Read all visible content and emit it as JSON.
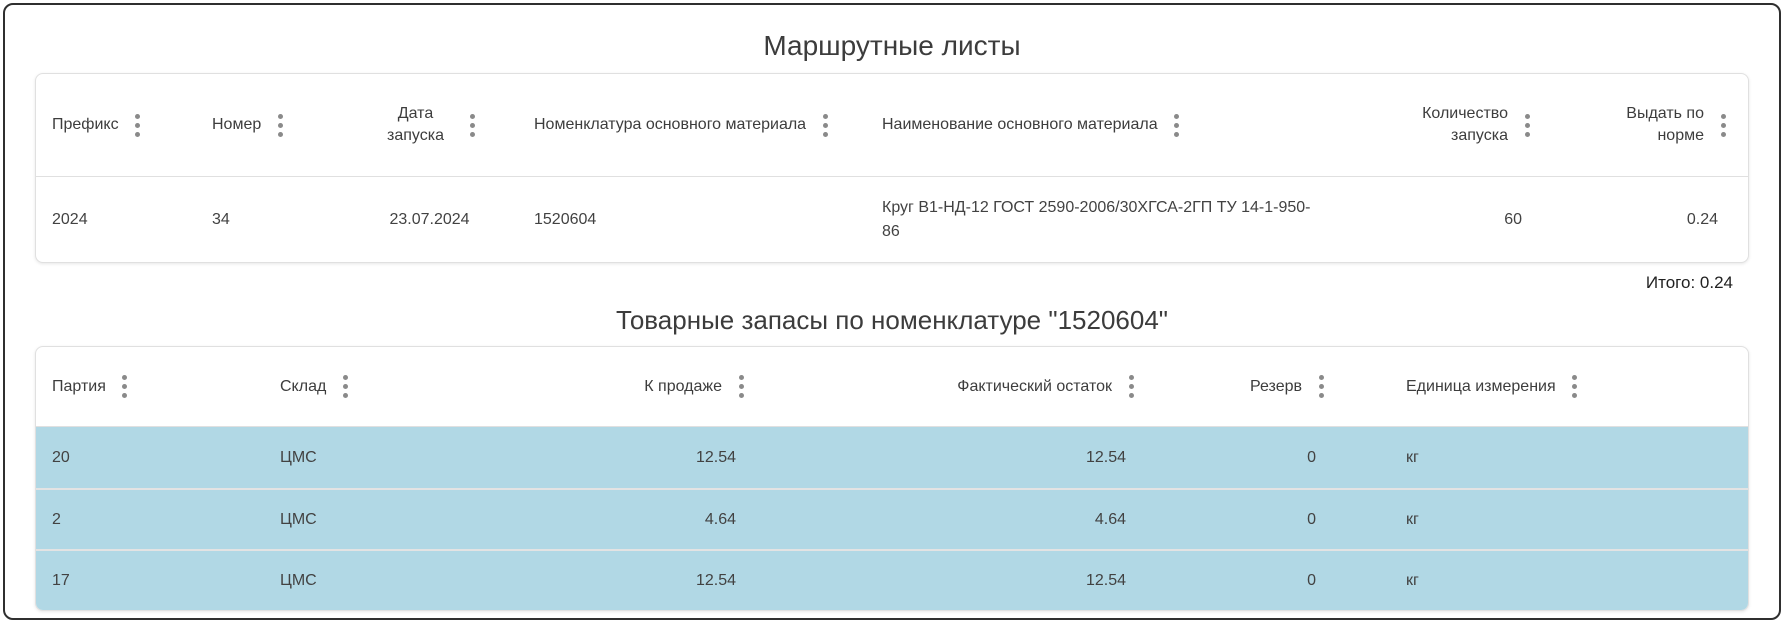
{
  "colors": {
    "row_highlight": "#b1d8e5",
    "card_border": "#e0e0e0",
    "frame_border": "#2f2f2f",
    "kebab_gray": "#8a8a8a"
  },
  "icons": {
    "column_menu": "kebab-vertical-icon"
  },
  "route_sheets": {
    "title": "Маршрутные листы",
    "columns": [
      {
        "label": "Префикс",
        "align": "left"
      },
      {
        "label": "Номер",
        "align": "left"
      },
      {
        "label": "Дата запуска",
        "align": "center"
      },
      {
        "label": "Номенклатура основного материала",
        "align": "left"
      },
      {
        "label": "Наименование основного материала",
        "align": "left"
      },
      {
        "label": "Количество запуска",
        "align": "right"
      },
      {
        "label": "Выдать по норме",
        "align": "right"
      }
    ],
    "rows": [
      [
        "2024",
        "34",
        "23.07.2024",
        "1520604",
        "Круг В1-НД-12 ГОСТ 2590-2006/30ХГСА-2ГП ТУ 14-1-950-86",
        "60",
        "0.24"
      ]
    ],
    "total_label": "Итого: 0.24"
  },
  "stocks": {
    "title": "Товарные запасы по номенклатуре \"1520604\"",
    "columns": [
      {
        "label": "Партия",
        "align": "left"
      },
      {
        "label": "Склад",
        "align": "left"
      },
      {
        "label": "К продаже",
        "align": "right"
      },
      {
        "label": "Фактический остаток",
        "align": "right"
      },
      {
        "label": "Резерв",
        "align": "right"
      },
      {
        "label": "Единица измерения",
        "align": "left"
      }
    ],
    "rows": [
      [
        "20",
        "ЦМС",
        "12.54",
        "12.54",
        "0",
        "кг"
      ],
      [
        "2",
        "ЦМС",
        "4.64",
        "4.64",
        "0",
        "кг"
      ],
      [
        "17",
        "ЦМС",
        "12.54",
        "12.54",
        "0",
        "кг"
      ]
    ]
  }
}
